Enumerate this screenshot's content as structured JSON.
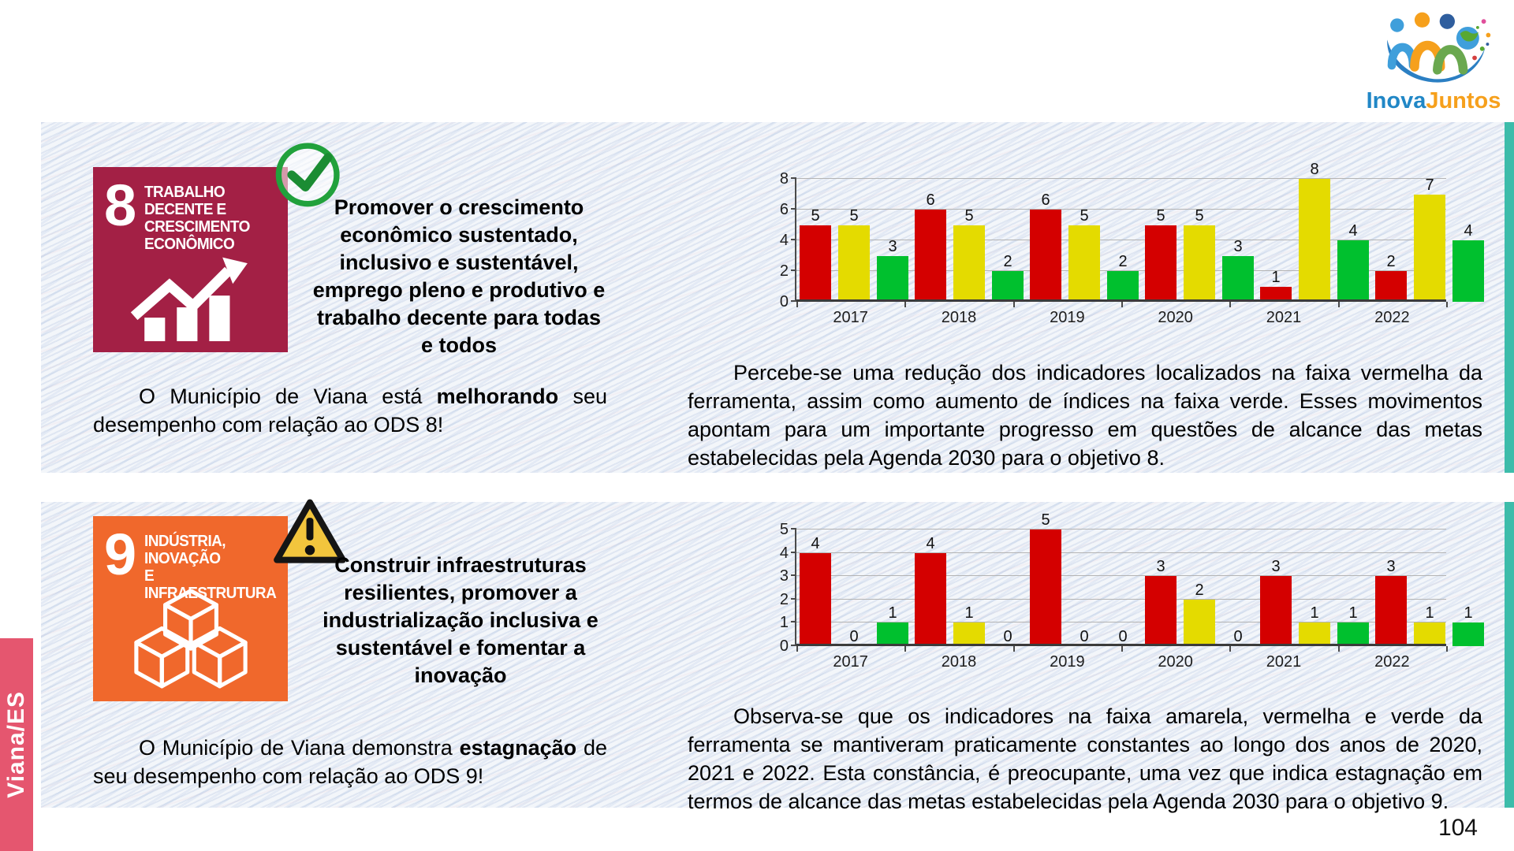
{
  "page": {
    "number": "104"
  },
  "logo": {
    "text_primary": "Inova",
    "text_secondary": "Juntos"
  },
  "region_tab": {
    "label": "Viana/ES",
    "color": "#e5566f"
  },
  "colors": {
    "red": "#d40000",
    "yellow": "#e4db00",
    "green": "#00c02e",
    "panel_edge": "#3dbcaa",
    "ods8": "#a32045",
    "ods9": "#f0682c",
    "check_green": "#1c9e3f",
    "warning_yellow": "#f2c53d",
    "sidebar_pink": "#e5566f"
  },
  "sections": [
    {
      "goal_number": "8",
      "goal_title": "TRABALHO DECENTE E\nCRESCIMENTO\nECONÔMICO",
      "status": "check",
      "mission": "Promover o crescimento\neconômico sustentado,\ninclusivo e sustentável,\nemprego pleno e produtivo e\ntrabalho decente para todas\ne todos",
      "performance_pre": "O Município de Viana está",
      "performance_highlight": "melhorando",
      "performance_post": "seu desempenho com relação ao ODS 8!",
      "analysis": "Percebe-se uma redução dos indicadores localizados na faixa vermelha da ferramenta, assim como aumento de índices na faixa verde. Esses movimentos apontam para um importante progresso em questões de alcance das metas estabelecidas pela Agenda 2030 para o objetivo 8."
    },
    {
      "goal_number": "9",
      "goal_title": "INDÚSTRIA, INOVAÇÃO\nE INFRAESTRUTURA",
      "status": "warning",
      "mission": "Construir infraestruturas\nresilientes, promover a\nindustrialização inclusiva e\nsustentável e fomentar a\ninovação",
      "performance_pre": "O Município de Viana demonstra",
      "performance_highlight": "estagnação",
      "performance_post": "de seu desempenho com relação ao ODS 9!",
      "analysis": "Observa-se que os indicadores na faixa amarela, vermelha e verde da ferramenta se mantiveram praticamente constantes ao longo dos anos de 2020, 2021 e 2022. Esta constância, é preocupante, uma vez que indica estagnação em termos de alcance das metas estabelecidas pela Agenda 2030 para o objetivo 9."
    }
  ],
  "chart_data": [
    {
      "type": "bar",
      "title": "",
      "categories": [
        "2017",
        "2018",
        "2019",
        "2020",
        "2021",
        "2022"
      ],
      "series": [
        {
          "name": "faixa-vermelha",
          "color_key": "red",
          "values": [
            5,
            6,
            6,
            5,
            1,
            2
          ]
        },
        {
          "name": "faixa-amarela",
          "color_key": "yellow",
          "values": [
            5,
            5,
            5,
            5,
            8,
            7
          ]
        },
        {
          "name": "faixa-verde",
          "color_key": "green",
          "values": [
            3,
            2,
            2,
            3,
            4,
            4
          ]
        }
      ],
      "ylim": [
        0,
        8
      ],
      "yticks": [
        0,
        2,
        4,
        6,
        8
      ],
      "grid": true,
      "legend": "none",
      "data_labels": true
    },
    {
      "type": "bar",
      "title": "",
      "categories": [
        "2017",
        "2018",
        "2019",
        "2020",
        "2021",
        "2022"
      ],
      "series": [
        {
          "name": "faixa-vermelha",
          "color_key": "red",
          "values": [
            4,
            4,
            5,
            3,
            3,
            3
          ]
        },
        {
          "name": "faixa-amarela",
          "color_key": "yellow",
          "values": [
            0,
            1,
            0,
            2,
            1,
            1
          ]
        },
        {
          "name": "faixa-verde",
          "color_key": "green",
          "values": [
            1,
            0,
            0,
            0,
            1,
            1
          ]
        }
      ],
      "ylim": [
        0,
        5
      ],
      "yticks": [
        0,
        1,
        2,
        3,
        4,
        5
      ],
      "grid": true,
      "legend": "none",
      "data_labels": true
    }
  ]
}
